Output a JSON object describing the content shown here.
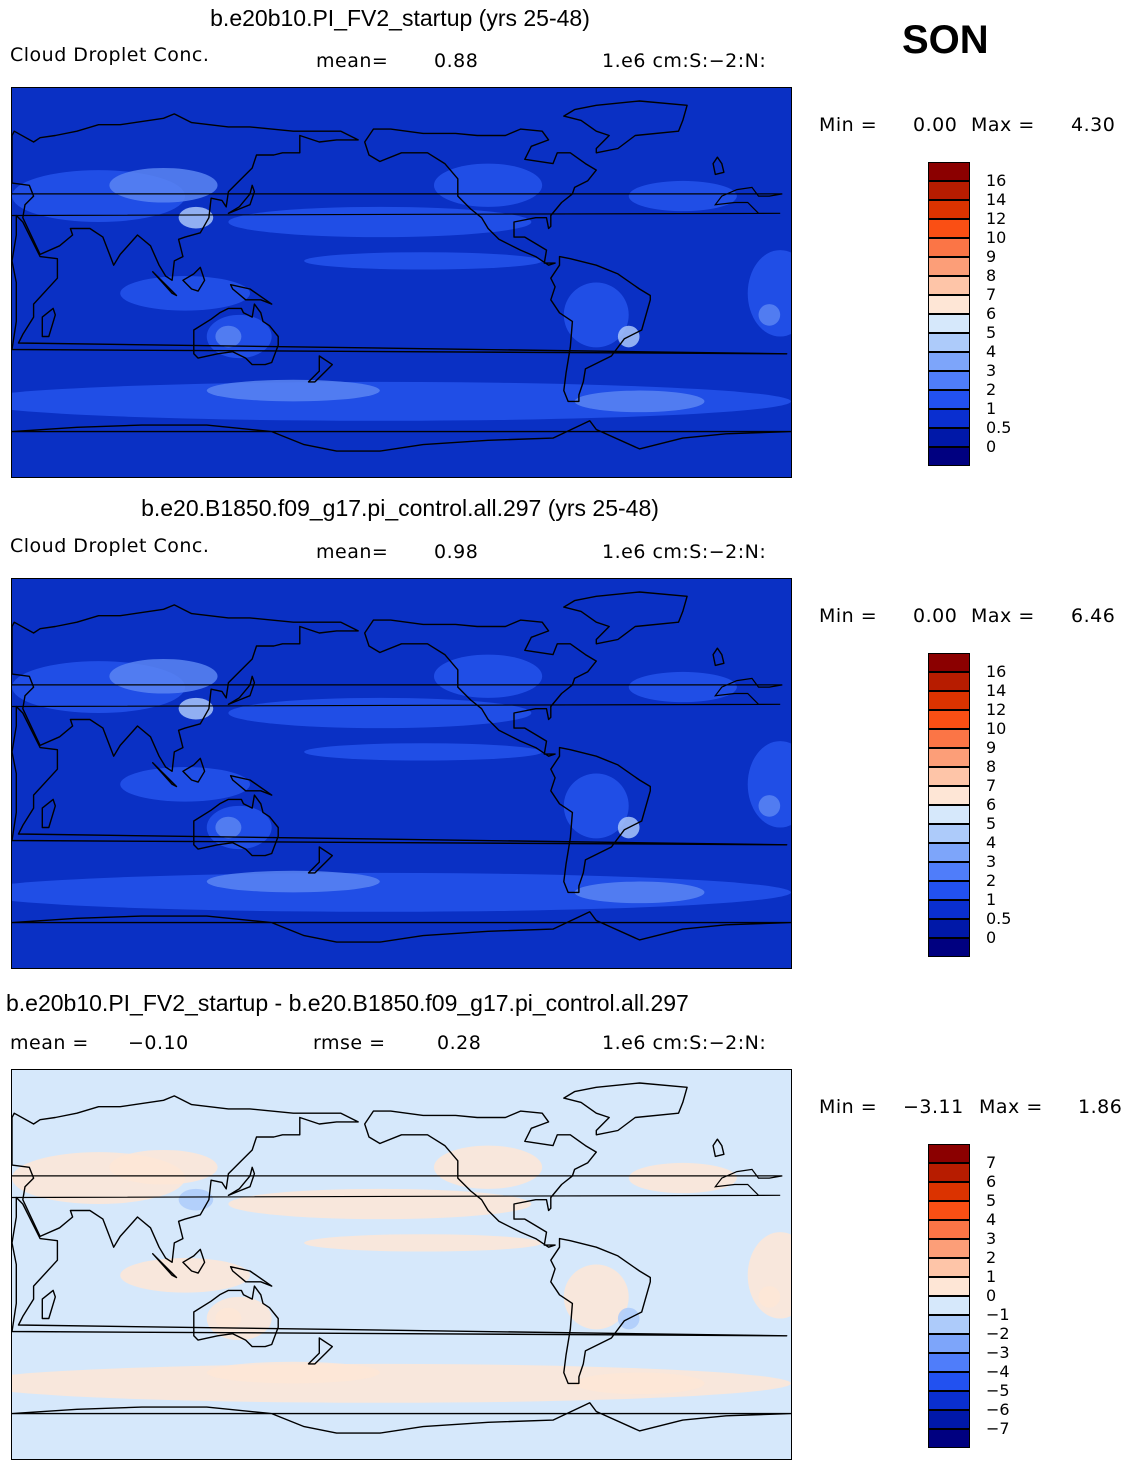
{
  "season": "SON",
  "panels": [
    {
      "title": "b.e20b10.PI_FV2_startup (yrs 25-48)",
      "left_label": "Cloud Droplet Conc.",
      "mid_label": "mean=",
      "mid_value": "0.88",
      "right_label": "1.e6 cm:S:−2:N:",
      "min_label": "Min =",
      "min_value": "0.00",
      "max_label": "Max =",
      "max_value": "4.30",
      "levels": [
        "16",
        "14",
        "12",
        "10",
        "9",
        "8",
        "7",
        "6",
        "5",
        "4",
        "3",
        "2",
        "1",
        "0.5",
        "0"
      ],
      "colors": [
        "#8b0000",
        "#b71c00",
        "#db3300",
        "#fa4f14",
        "#fb7546",
        "#fc9e78",
        "#fec5a8",
        "#fee6d6",
        "#d6e8fb",
        "#adcbfa",
        "#7da5fa",
        "#4f7dfa",
        "#2251f0",
        "#0a2fd0",
        "#0018a8",
        "#000080"
      ],
      "ocean": "#0a30c4",
      "mid_color": "#2454ec",
      "light_color": "#5a85f2",
      "bright_color": "#a9c5fa"
    },
    {
      "title": "b.e20.B1850.f09_g17.pi_control.all.297 (yrs 25-48)",
      "left_label": "Cloud Droplet Conc.",
      "mid_label": "mean=",
      "mid_value": "0.98",
      "right_label": "1.e6 cm:S:−2:N:",
      "min_label": "Min =",
      "min_value": "0.00",
      "max_label": "Max =",
      "max_value": "6.46",
      "levels": [
        "16",
        "14",
        "12",
        "10",
        "9",
        "8",
        "7",
        "6",
        "5",
        "4",
        "3",
        "2",
        "1",
        "0.5",
        "0"
      ],
      "colors": [
        "#8b0000",
        "#b71c00",
        "#db3300",
        "#fa4f14",
        "#fb7546",
        "#fc9e78",
        "#fec5a8",
        "#fee6d6",
        "#d6e8fb",
        "#adcbfa",
        "#7da5fa",
        "#4f7dfa",
        "#2251f0",
        "#0a2fd0",
        "#0018a8",
        "#000080"
      ],
      "ocean": "#0a30c4",
      "mid_color": "#2454ec",
      "light_color": "#5a85f2",
      "bright_color": "#a9c5fa"
    },
    {
      "title": "b.e20b10.PI_FV2_startup - b.e20.B1850.f09_g17.pi_control.all.297",
      "left_label": "mean =",
      "left_value": "−0.10",
      "mid_label": "rmse =",
      "mid_value": "0.28",
      "right_label": "1.e6 cm:S:−2:N:",
      "min_label": "Min =",
      "min_value": "−3.11",
      "max_label": "Max =",
      "max_value": "1.86",
      "levels": [
        "7",
        "6",
        "5",
        "4",
        "3",
        "2",
        "1",
        "0",
        "−1",
        "−2",
        "−3",
        "−4",
        "−5",
        "−6",
        "−7"
      ],
      "colors": [
        "#8b0000",
        "#b71c00",
        "#db3300",
        "#fa4f14",
        "#fb7546",
        "#fc9e78",
        "#fec5a8",
        "#fee6d6",
        "#d6e8fb",
        "#adcbfa",
        "#7da5fa",
        "#4f7dfa",
        "#2251f0",
        "#0a2fd0",
        "#0018a8",
        "#000080"
      ],
      "ocean": "#d6e8fb",
      "mid_color": "#fee6d6",
      "light_color": "#fee6d6",
      "bright_color": "#adcbfa"
    }
  ]
}
